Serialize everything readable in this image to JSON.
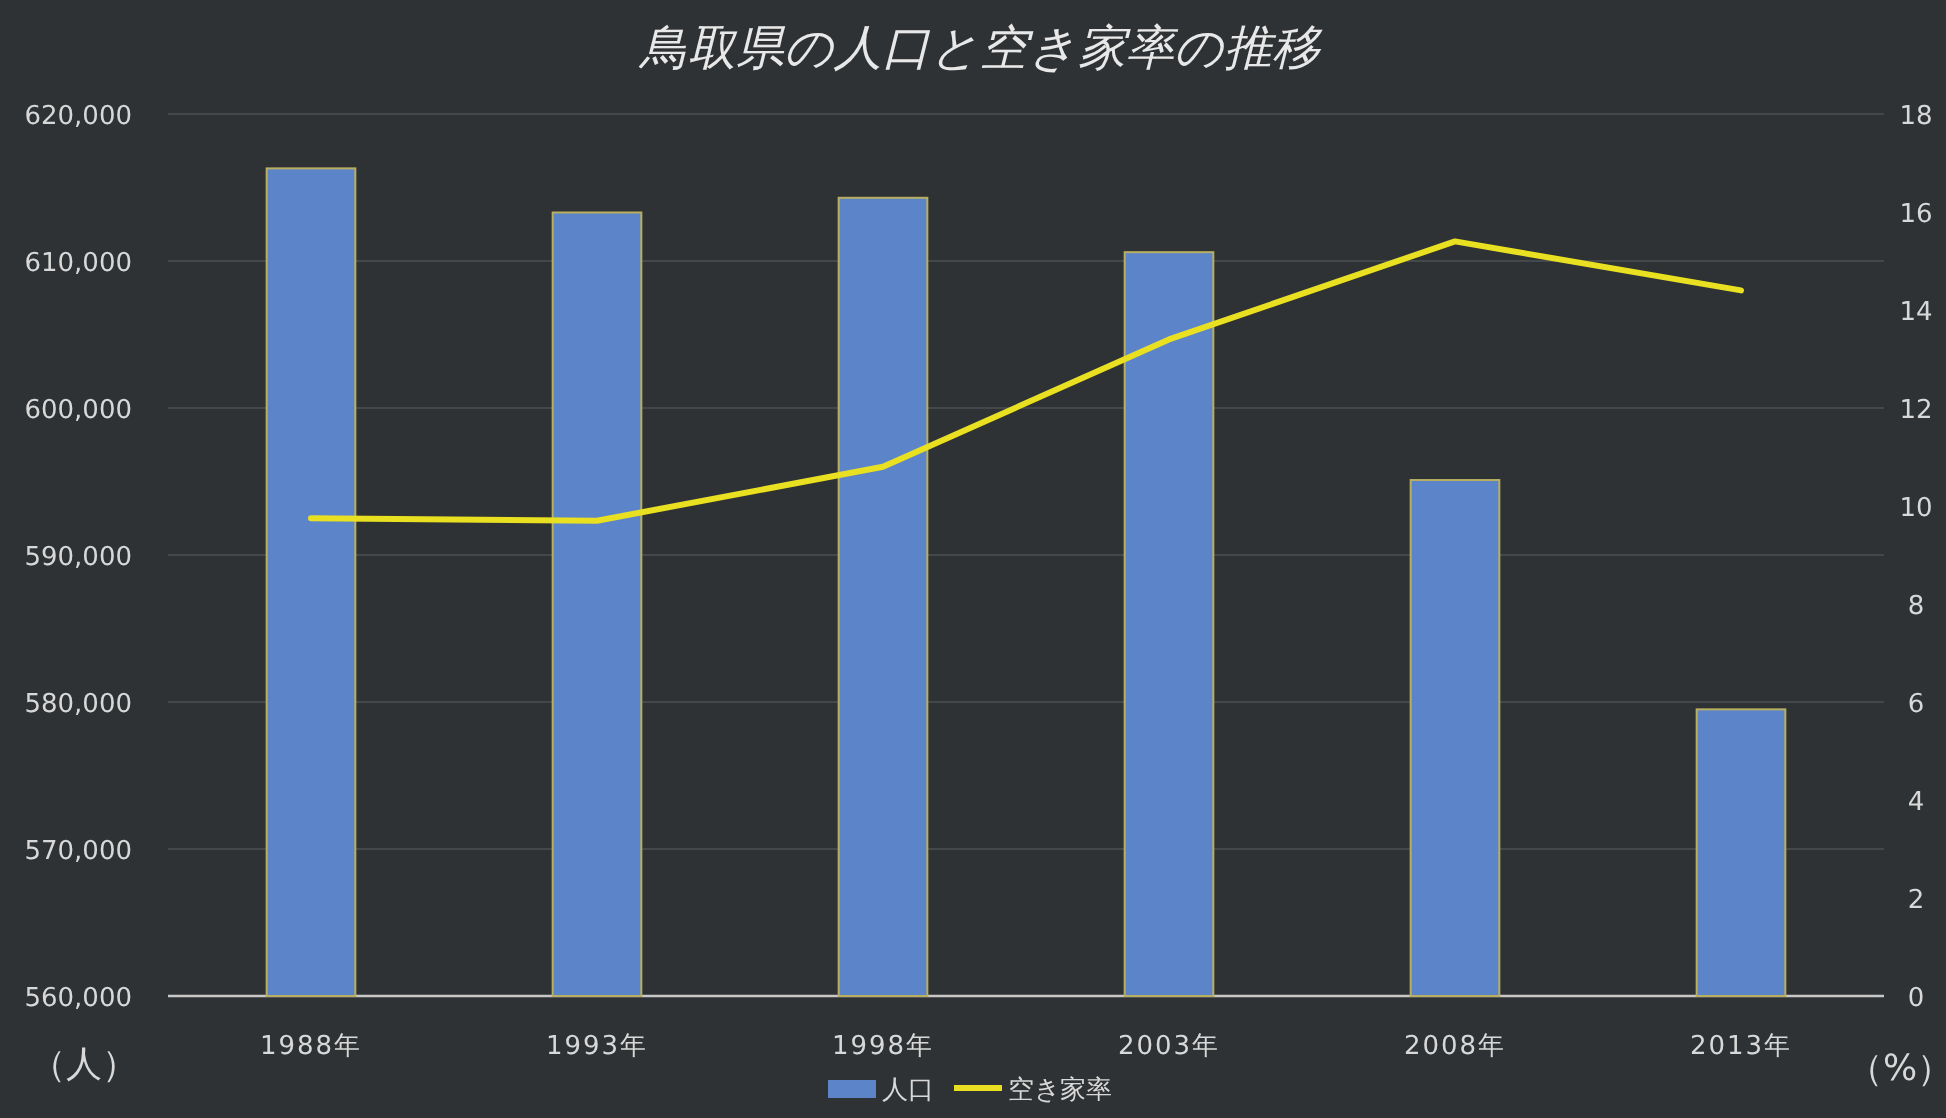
{
  "chart_data": {
    "type": "bar",
    "title": "鳥取県の人口と空き家率の推移",
    "ylabel": "（人）",
    "y2label": "（%）",
    "categories": [
      "1988年",
      "1993年",
      "1998年",
      "2003年",
      "2008年",
      "2013年"
    ],
    "series": [
      {
        "name": "人口",
        "color": "#5b84c9",
        "values": [
          616300,
          613300,
          614300,
          610600,
          595100,
          579500
        ]
      },
      {
        "name": "空き家率",
        "type": "line",
        "axis": "y2",
        "color": "#e8e020",
        "values": [
          9.75,
          9.7,
          10.8,
          13.4,
          15.4,
          14.4
        ]
      }
    ],
    "ylim": [
      560000,
      620000
    ],
    "yticks": [
      {
        "value": 560000,
        "label": "560,000"
      },
      {
        "value": 570000,
        "label": "570,000"
      },
      {
        "value": 580000,
        "label": "580,000"
      },
      {
        "value": 590000,
        "label": "590,000"
      },
      {
        "value": 600000,
        "label": "600,000"
      },
      {
        "value": 610000,
        "label": "610,000"
      },
      {
        "value": 620000,
        "label": "620,000"
      }
    ],
    "y2lim": [
      0,
      18
    ],
    "y2ticks": [
      0,
      2,
      4,
      6,
      8,
      10,
      12,
      14,
      16,
      18
    ],
    "grid": "y",
    "legend": "bottom"
  }
}
